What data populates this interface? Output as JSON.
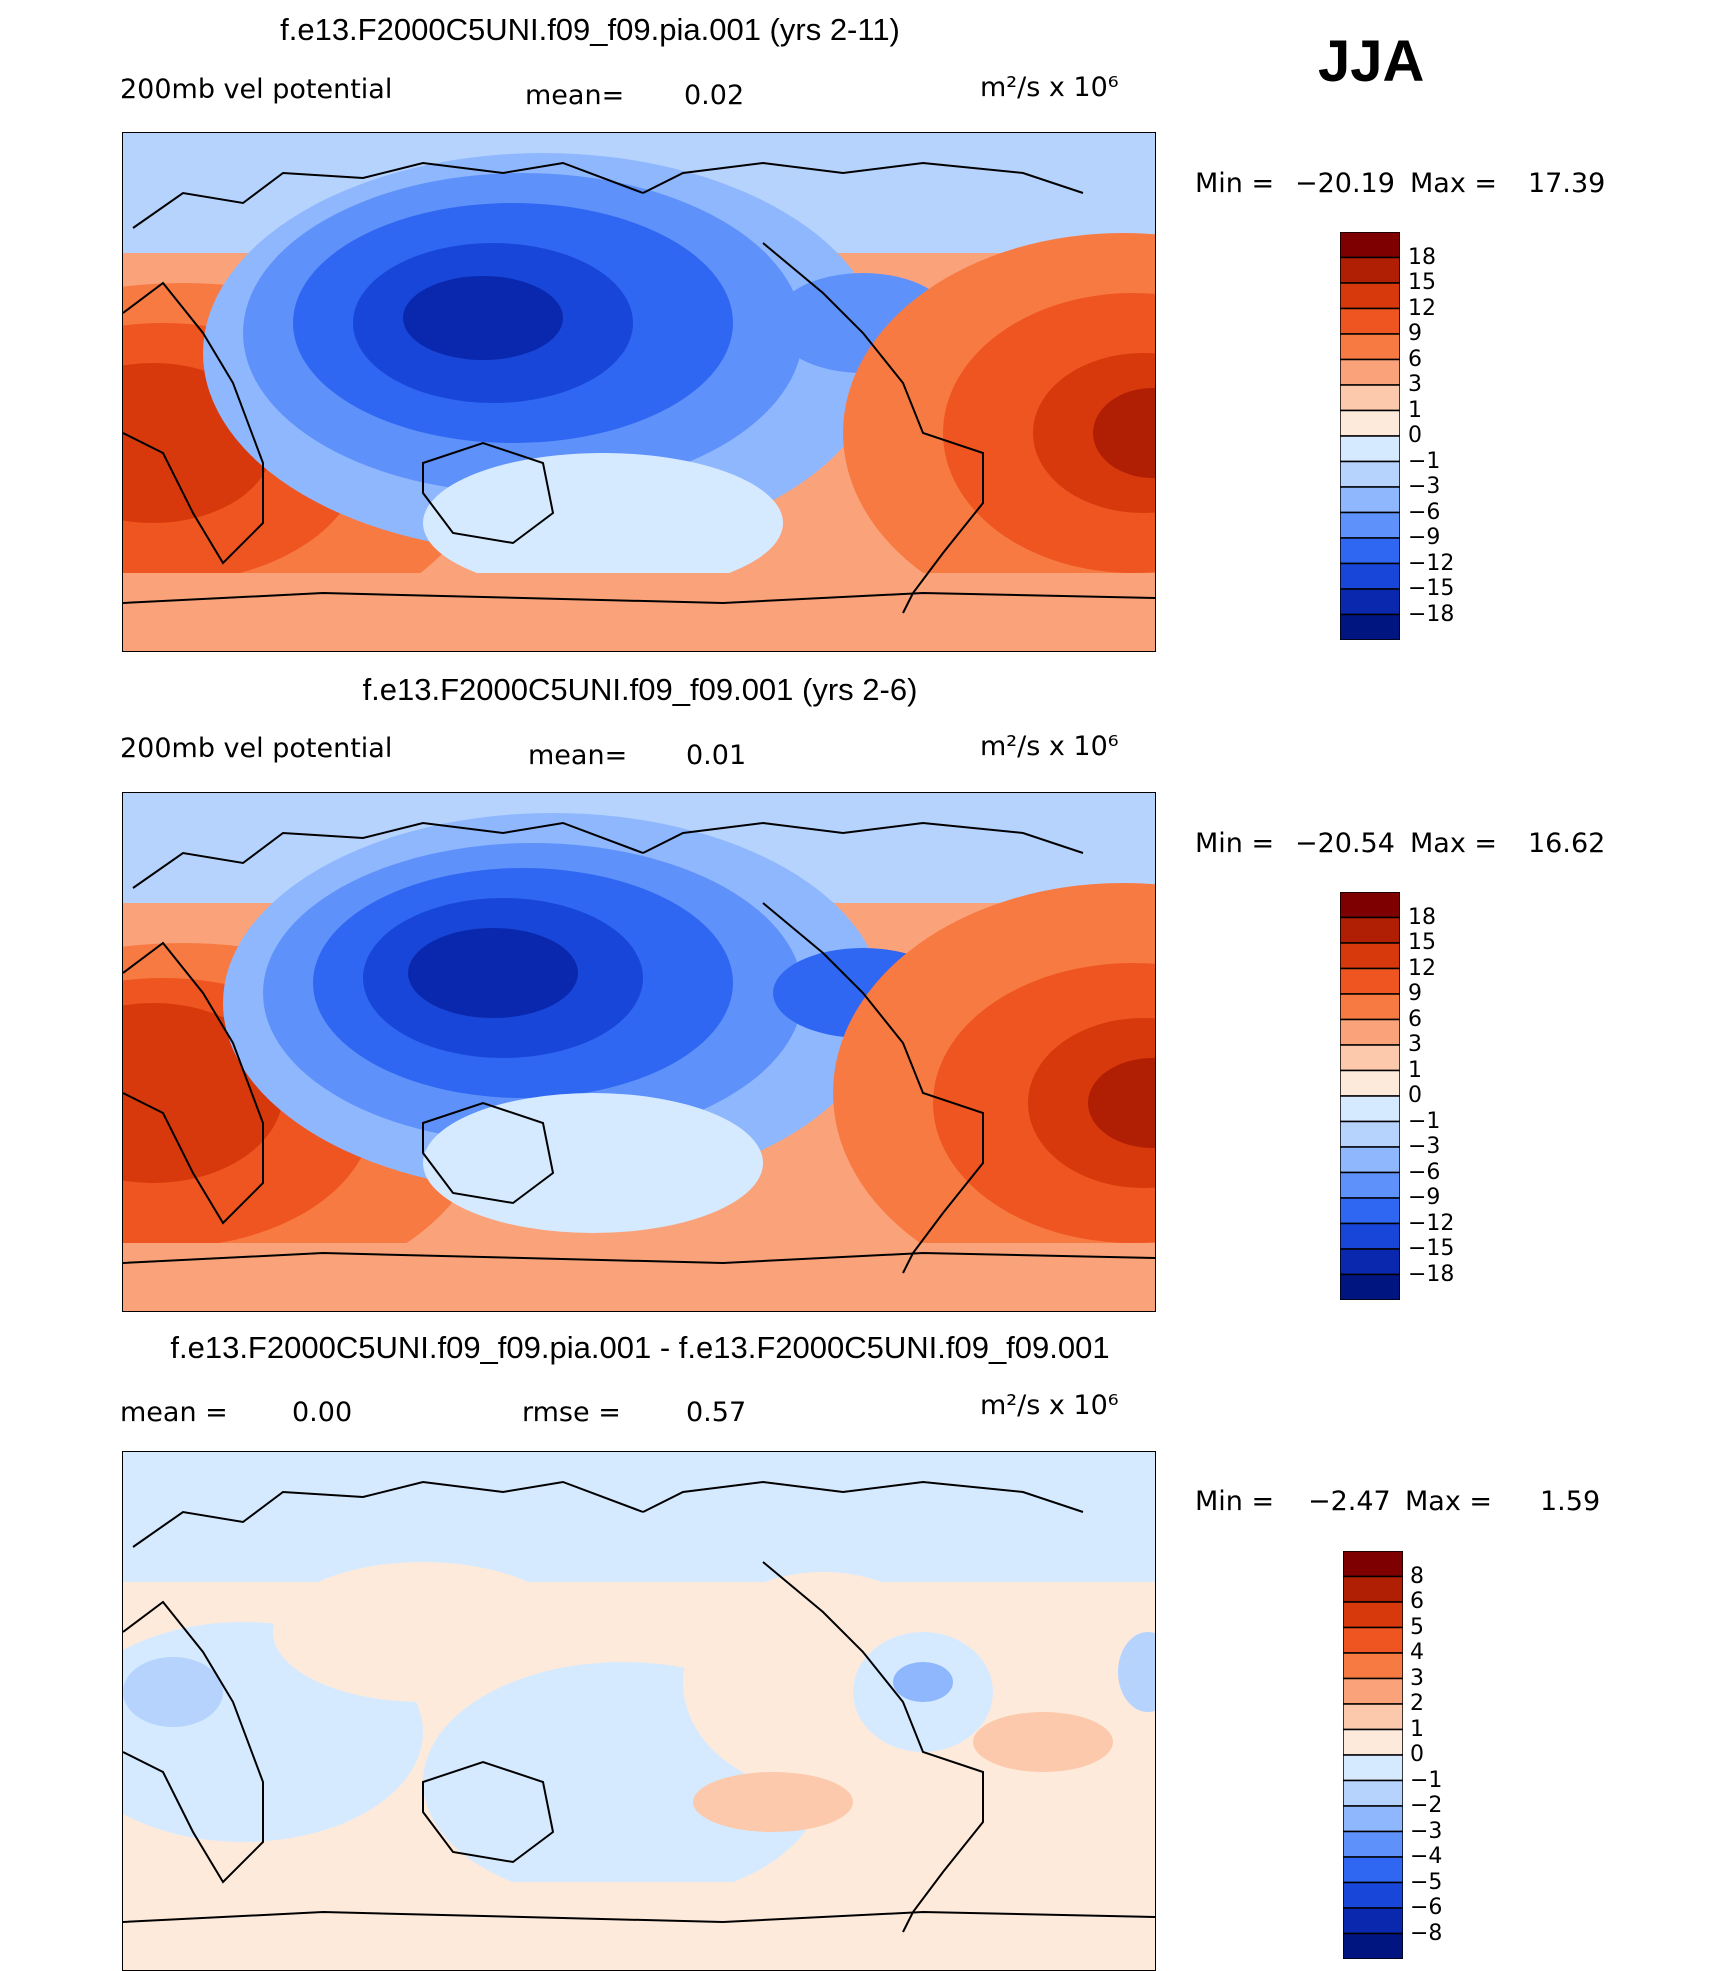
{
  "season": "JJA",
  "chart_data": [
    {
      "type": "heatmap",
      "title": "f.e13.F2000C5UNI.f09_f09.pia.001 (yrs 2-11)",
      "left_label": "200mb vel potential",
      "center_label": "mean=",
      "center_value": "0.02",
      "units": "m²/s x 10⁶",
      "min_label": "Min =",
      "min_value": "−20.19",
      "max_label": "Max =",
      "max_value": "17.39",
      "colorbar": {
        "ticks": [
          "18",
          "15",
          "12",
          "9",
          "6",
          "3",
          "1",
          "0",
          "−1",
          "−3",
          "−6",
          "−9",
          "−12",
          "−15",
          "−18"
        ],
        "colors": [
          "#7f0000",
          "#b01e04",
          "#d8390c",
          "#ef5520",
          "#f87a43",
          "#faa37b",
          "#fcc9ac",
          "#feeadb",
          "#d6eaff",
          "#b6d3fe",
          "#8eb7fe",
          "#5f91fa",
          "#2f67f2",
          "#1846d8",
          "#0a28ad",
          "#00157f"
        ]
      },
      "ylim": [
        -90,
        90
      ],
      "xlim": [
        0,
        360
      ]
    },
    {
      "type": "heatmap",
      "title": "f.e13.F2000C5UNI.f09_f09.001 (yrs 2-6)",
      "left_label": "200mb vel potential",
      "center_label": "mean=",
      "center_value": "0.01",
      "units": "m²/s x 10⁶",
      "min_label": "Min =",
      "min_value": "−20.54",
      "max_label": "Max =",
      "max_value": "16.62",
      "colorbar": {
        "ticks": [
          "18",
          "15",
          "12",
          "9",
          "6",
          "3",
          "1",
          "0",
          "−1",
          "−3",
          "−6",
          "−9",
          "−12",
          "−15",
          "−18"
        ],
        "colors": [
          "#7f0000",
          "#b01e04",
          "#d8390c",
          "#ef5520",
          "#f87a43",
          "#faa37b",
          "#fcc9ac",
          "#feeadb",
          "#d6eaff",
          "#b6d3fe",
          "#8eb7fe",
          "#5f91fa",
          "#2f67f2",
          "#1846d8",
          "#0a28ad",
          "#00157f"
        ]
      },
      "ylim": [
        -90,
        90
      ],
      "xlim": [
        0,
        360
      ]
    },
    {
      "type": "heatmap",
      "title": "f.e13.F2000C5UNI.f09_f09.pia.001 - f.e13.F2000C5UNI.f09_f09.001",
      "left_label": "mean =",
      "left_value": "0.00",
      "center_label": "rmse =",
      "center_value": "0.57",
      "units": "m²/s x 10⁶",
      "min_label": "Min =",
      "min_value": "−2.47",
      "max_label": "Max =",
      "max_value": "1.59",
      "colorbar": {
        "ticks": [
          "8",
          "6",
          "5",
          "4",
          "3",
          "2",
          "1",
          "0",
          "−1",
          "−2",
          "−3",
          "−4",
          "−5",
          "−6",
          "−8"
        ],
        "colors": [
          "#7f0000",
          "#b01e04",
          "#d8390c",
          "#ef5520",
          "#f87a43",
          "#faa37b",
          "#fcc9ac",
          "#feeadb",
          "#d6eaff",
          "#b6d3fe",
          "#8eb7fe",
          "#5f91fa",
          "#2f67f2",
          "#1846d8",
          "#0a28ad",
          "#00157f"
        ]
      },
      "ylim": [
        -90,
        90
      ],
      "xlim": [
        0,
        360
      ]
    }
  ]
}
